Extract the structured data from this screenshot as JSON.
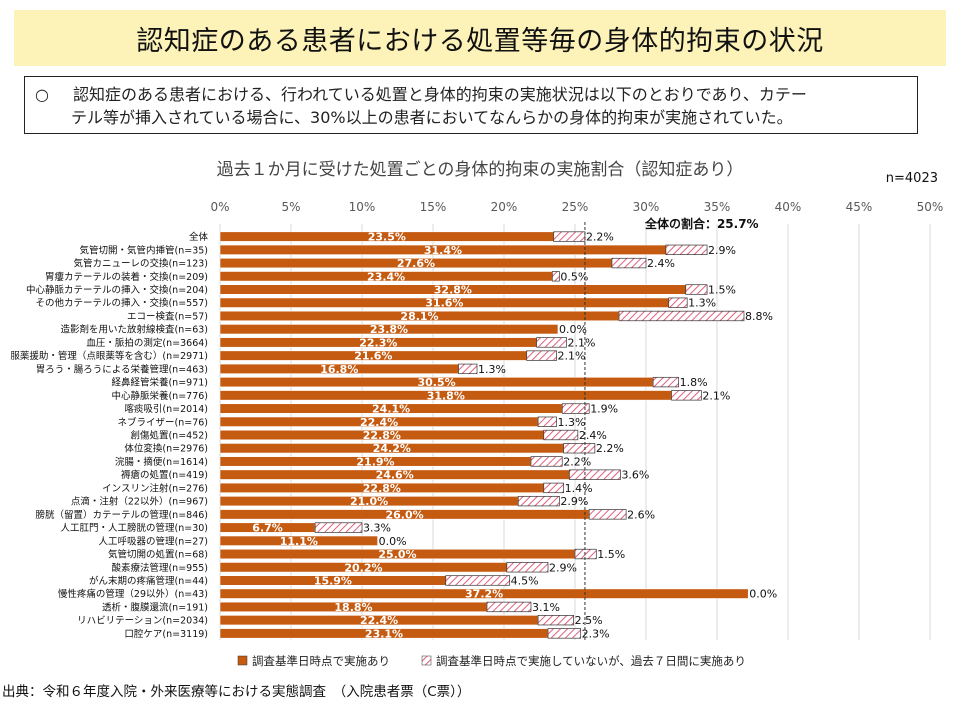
{
  "title": "認知症のある患者における処置等毎の身体的拘束の状況",
  "summary": {
    "bullet": "○",
    "line1": "認知症のある患者における、行われている処置と身体的拘束の実施状況は以下のとおりであり、カテー",
    "line2": "テル等が挿入されている場合に、30%以上の患者においてなんらかの身体的拘束が実施されていた。"
  },
  "source": "出典：令和６年度入院・外来医療等における実態調査　（入院患者票（C票））",
  "chart_data": {
    "type": "bar",
    "orientation": "horizontal",
    "stacked": true,
    "title": "過去１か月に受けた処置ごとの身体的拘束の実施割合（認知症あり）",
    "n_label": "n=4023",
    "xlim": [
      0,
      50
    ],
    "x_ticks": [
      "0%",
      "5%",
      "10%",
      "15%",
      "20%",
      "25%",
      "30%",
      "35%",
      "40%",
      "45%",
      "50%"
    ],
    "x_tick_values": [
      0,
      5,
      10,
      15,
      20,
      25,
      30,
      35,
      40,
      45,
      50
    ],
    "reference_line": {
      "value": 25.7,
      "label": "全体の割合：25.7%"
    },
    "categories": [
      "全体",
      "気管切開・気管内挿管(n=35)",
      "気管カニューレの交換(n=123)",
      "胃瘻カテーテルの装着・交換(n=209)",
      "中心静脈カテーテルの挿入・交換(n=204)",
      "その他カテーテルの挿入・交換(n=557)",
      "エコー検査(n=57)",
      "造影剤を用いた放射線検査(n=63)",
      "血圧・脈拍の測定(n=3664)",
      "服薬援助・管理（点眼薬等を含む）(n=2971)",
      "胃ろう・腸ろうによる栄養管理(n=463)",
      "経鼻経管栄養(n=971)",
      "中心静脈栄養(n=776)",
      "喀痰吸引(n=2014)",
      "ネブライザー(n=76)",
      "創傷処置(n=452)",
      "体位変換(n=2976)",
      "浣腸・摘便(n=1614)",
      "褥瘡の処置(n=419)",
      "インスリン注射(n=276)",
      "点滴・注射（22以外）(n=967)",
      "膀胱（留置）カテーテルの管理(n=846)",
      "人工肛門・人工膀胱の管理(n=30)",
      "人工呼吸器の管理(n=27)",
      "気管切開の処置(n=68)",
      "酸素療法管理(n=955)",
      "がん末期の疼痛管理(n=44)",
      "慢性疼痛の管理（29以外）(n=43)",
      "透析・腹膜還流(n=191)",
      "リハビリテーション(n=2034)",
      "口腔ケア(n=3119)"
    ],
    "series": [
      {
        "name": "調査基準日時点で実施あり",
        "color": "#c55a11",
        "values": [
          23.5,
          31.4,
          27.6,
          23.4,
          32.8,
          31.6,
          28.1,
          23.8,
          22.3,
          21.6,
          16.8,
          30.5,
          31.8,
          24.1,
          22.4,
          22.8,
          24.2,
          21.9,
          24.6,
          22.8,
          21.0,
          26.0,
          6.7,
          11.1,
          25.0,
          20.2,
          15.9,
          37.2,
          18.8,
          22.4,
          23.1
        ],
        "labels": [
          "23.5%",
          "31.4%",
          "27.6%",
          "23.4%",
          "32.8%",
          "31.6%",
          "28.1%",
          "23.8%",
          "22.3%",
          "21.6%",
          "16.8%",
          "30.5%",
          "31.8%",
          "24.1%",
          "22.4%",
          "22.8%",
          "24.2%",
          "21.9%",
          "24.6%",
          "22.8%",
          "21.0%",
          "26.0%",
          "6.7%",
          "11.1%",
          "25.0%",
          "20.2%",
          "15.9%",
          "37.2%",
          "18.8%",
          "22.4%",
          "23.1%"
        ]
      },
      {
        "name": "調査基準日時点で実施していないが、過去７日間に実施あり",
        "color": "#e0607e",
        "pattern": "diagonal-hatch",
        "values": [
          2.2,
          2.9,
          2.4,
          0.5,
          1.5,
          1.3,
          8.8,
          0.0,
          2.1,
          2.1,
          1.3,
          1.8,
          2.1,
          1.9,
          1.3,
          2.4,
          2.2,
          2.2,
          3.6,
          1.4,
          2.9,
          2.6,
          3.3,
          0.0,
          1.5,
          2.9,
          4.5,
          0.0,
          3.1,
          2.5,
          2.3
        ],
        "labels": [
          "2.2%",
          "2.9%",
          "2.4%",
          "0.5%",
          "1.5%",
          "1.3%",
          "8.8%",
          "0.0%",
          "2.1%",
          "2.1%",
          "1.3%",
          "1.8%",
          "2.1%",
          "1.9%",
          "1.3%",
          "2.4%",
          "2.2%",
          "2.2%",
          "3.6%",
          "1.4%",
          "2.9%",
          "2.6%",
          "3.3%",
          "0.0%",
          "1.5%",
          "2.9%",
          "4.5%",
          "0.0%",
          "3.1%",
          "2.5%",
          "2.3%"
        ]
      }
    ],
    "legend": [
      "調査基準日時点で実施あり",
      "調査基準日時点で実施していないが、過去７日間に実施あり"
    ],
    "legend_position": "bottom",
    "grid": true
  }
}
